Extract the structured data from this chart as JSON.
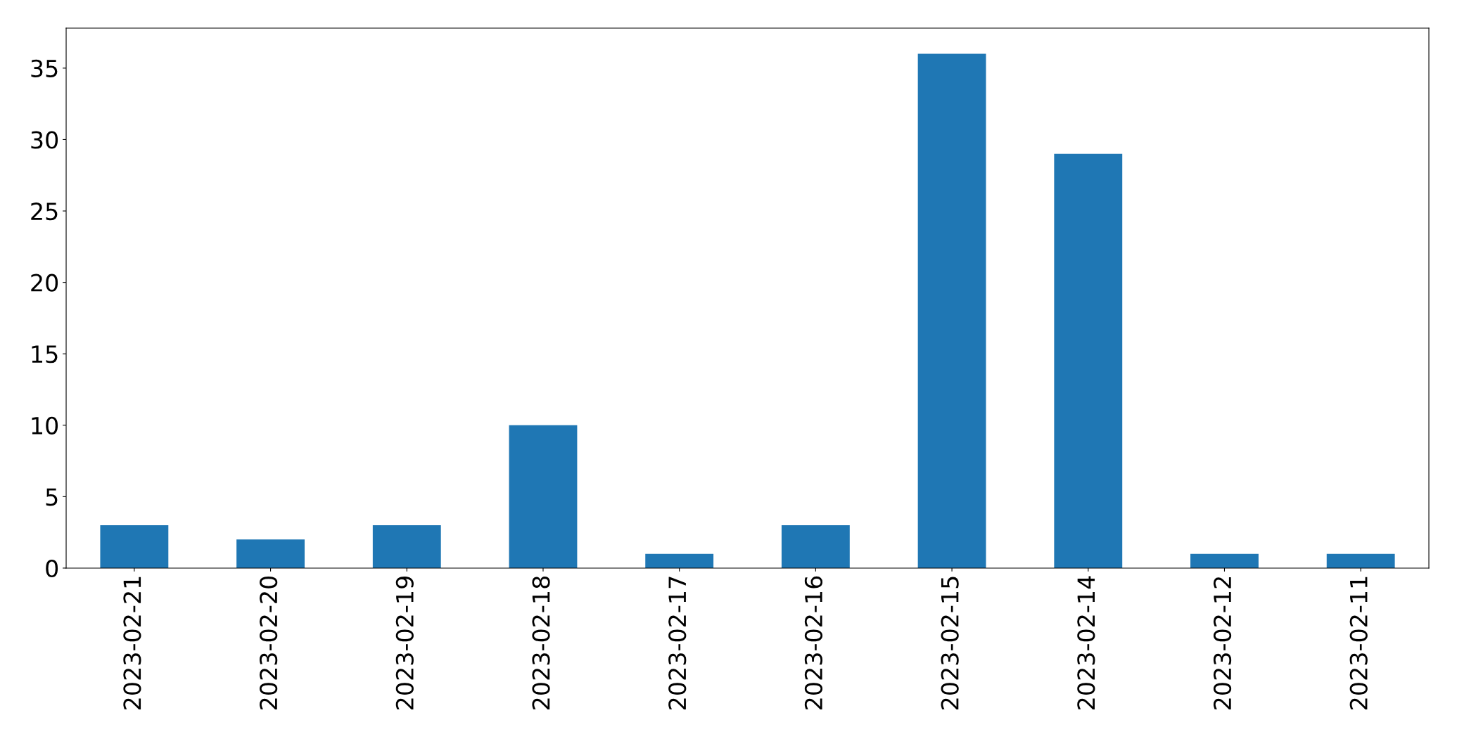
{
  "chart_data": {
    "type": "bar",
    "categories": [
      "2023-02-21",
      "2023-02-20",
      "2023-02-19",
      "2023-02-18",
      "2023-02-17",
      "2023-02-16",
      "2023-02-15",
      "2023-02-14",
      "2023-02-12",
      "2023-02-11"
    ],
    "values": [
      3,
      2,
      3,
      10,
      1,
      3,
      36,
      29,
      1,
      1
    ],
    "color": "#1f77b4",
    "ylim": [
      0,
      37.8
    ],
    "yticks": [
      0,
      5,
      10,
      15,
      20,
      25,
      30,
      35
    ],
    "grid": false
  }
}
